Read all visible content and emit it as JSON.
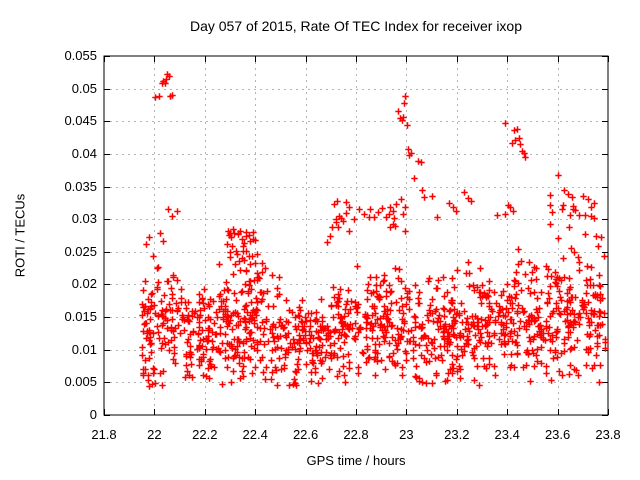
{
  "chart_data": {
    "type": "scatter",
    "title": "Day 057 of 2015, Rate Of TEC Index for receiver ixop",
    "xlabel": "GPS time / hours",
    "ylabel": "ROTI / TECUs",
    "xlim": [
      21.8,
      23.8
    ],
    "ylim": [
      0,
      0.055
    ],
    "xticks": [
      21.8,
      22,
      22.2,
      22.4,
      22.6,
      22.8,
      23,
      23.2,
      23.4,
      23.6,
      23.8
    ],
    "xtick_labels": [
      "21.8",
      "22",
      "22.2",
      "22.4",
      "22.6",
      "22.8",
      "23",
      "23.2",
      "23.4",
      "23.6",
      "23.8"
    ],
    "yticks": [
      0,
      0.005,
      0.01,
      0.015,
      0.02,
      0.025,
      0.03,
      0.035,
      0.04,
      0.045,
      0.05,
      0.055
    ],
    "ytick_labels": [
      "0",
      "0.005",
      "0.01",
      "0.015",
      "0.02",
      "0.025",
      "0.03",
      "0.035",
      "0.04",
      "0.045",
      "0.05",
      "0.055"
    ],
    "grid": true,
    "legend": "none",
    "marker": {
      "shape": "plus",
      "size": 7
    },
    "colors": {
      "marker": "#ff0000",
      "grid": "#b4b4b4",
      "axis": "#000000",
      "text": "#000000",
      "background": "#ffffff"
    },
    "x_data_range": [
      21.95,
      23.79
    ],
    "points": [
      [
        22.004,
        0.0487
      ],
      [
        22.017,
        0.0488
      ],
      [
        22.032,
        0.0508
      ],
      [
        22.036,
        0.0511
      ],
      [
        22.041,
        0.0509
      ],
      [
        22.045,
        0.0514
      ],
      [
        22.051,
        0.0522
      ],
      [
        22.057,
        0.0519
      ],
      [
        22.063,
        0.0488
      ],
      [
        22.069,
        0.0491
      ],
      [
        22.052,
        0.0316
      ],
      [
        22.068,
        0.0305
      ],
      [
        22.088,
        0.0313
      ],
      [
        22.021,
        0.0279
      ],
      [
        22.036,
        0.0267
      ],
      [
        21.968,
        0.0262
      ],
      [
        21.978,
        0.0273
      ],
      [
        22.292,
        0.0282
      ],
      [
        22.312,
        0.0285
      ],
      [
        22.332,
        0.0278
      ],
      [
        22.362,
        0.0275
      ],
      [
        22.302,
        0.0272
      ],
      [
        22.685,
        0.0265
      ],
      [
        22.698,
        0.0274
      ],
      [
        22.706,
        0.0288
      ],
      [
        22.722,
        0.0296
      ],
      [
        22.742,
        0.0302
      ],
      [
        22.76,
        0.0326
      ],
      [
        22.772,
        0.0318
      ],
      [
        22.81,
        0.0315
      ],
      [
        22.832,
        0.0308
      ],
      [
        22.85,
        0.0304
      ],
      [
        22.872,
        0.0303
      ],
      [
        22.887,
        0.0311
      ],
      [
        22.905,
        0.0317
      ],
      [
        22.93,
        0.0308
      ],
      [
        22.945,
        0.0312
      ],
      [
        22.958,
        0.0323
      ],
      [
        22.965,
        0.0466
      ],
      [
        22.975,
        0.0455
      ],
      [
        22.981,
        0.0452
      ],
      [
        22.986,
        0.0457
      ],
      [
        22.991,
        0.0478
      ],
      [
        22.996,
        0.0489
      ],
      [
        23.001,
        0.0444
      ],
      [
        23.006,
        0.0408
      ],
      [
        23.012,
        0.0399
      ],
      [
        23.017,
        0.0401
      ],
      [
        23.03,
        0.0363
      ],
      [
        23.046,
        0.0389
      ],
      [
        23.056,
        0.0388
      ],
      [
        23.062,
        0.0345
      ],
      [
        23.068,
        0.0334
      ],
      [
        23.1,
        0.0336
      ],
      [
        23.12,
        0.0303
      ],
      [
        23.17,
        0.0325
      ],
      [
        23.186,
        0.0318
      ],
      [
        23.196,
        0.0312
      ],
      [
        23.23,
        0.0342
      ],
      [
        23.246,
        0.0333
      ],
      [
        23.258,
        0.0328
      ],
      [
        23.36,
        0.0306
      ],
      [
        23.392,
        0.0447
      ],
      [
        23.425,
        0.0436
      ],
      [
        23.437,
        0.0438
      ],
      [
        23.42,
        0.0417
      ],
      [
        23.432,
        0.0421
      ],
      [
        23.447,
        0.0425
      ],
      [
        23.452,
        0.0415
      ],
      [
        23.457,
        0.0405
      ],
      [
        23.466,
        0.0401
      ],
      [
        23.472,
        0.0396
      ],
      [
        23.402,
        0.0322
      ],
      [
        23.412,
        0.0318
      ],
      [
        23.422,
        0.0312
      ],
      [
        23.392,
        0.0308
      ],
      [
        23.602,
        0.0368
      ],
      [
        23.626,
        0.0345
      ],
      [
        23.641,
        0.0338
      ],
      [
        23.656,
        0.0334
      ],
      [
        23.701,
        0.0335
      ],
      [
        23.622,
        0.0322
      ],
      [
        23.661,
        0.0316
      ],
      [
        23.686,
        0.0306
      ],
      [
        23.721,
        0.0331
      ],
      [
        23.731,
        0.0319
      ],
      [
        23.746,
        0.0302
      ],
      [
        23.752,
        0.0275
      ],
      [
        23.772,
        0.0272
      ],
      [
        21.996,
        0.0064
      ],
      [
        22.001,
        0.0049
      ],
      [
        22.302,
        0.0051
      ],
      [
        22.341,
        0.0057
      ],
      [
        22.461,
        0.0055
      ],
      [
        22.551,
        0.0048
      ],
      [
        22.561,
        0.0046
      ],
      [
        22.621,
        0.0052
      ],
      [
        22.751,
        0.0062
      ],
      [
        23.051,
        0.0057
      ],
      [
        23.101,
        0.0049
      ],
      [
        23.161,
        0.0053
      ],
      [
        23.211,
        0.0056
      ],
      [
        23.351,
        0.0062
      ]
    ],
    "dense_bands": [
      {
        "x0": 21.95,
        "x1": 22.0,
        "n": 48,
        "mean": 0.0135,
        "std": 0.0045
      },
      {
        "x0": 22.0,
        "x1": 22.12,
        "n": 70,
        "mean": 0.0138,
        "std": 0.004
      },
      {
        "x0": 22.12,
        "x1": 22.25,
        "n": 95,
        "mean": 0.0125,
        "std": 0.0035
      },
      {
        "x0": 22.25,
        "x1": 22.5,
        "n": 170,
        "mean": 0.0135,
        "std": 0.004
      },
      {
        "x0": 22.25,
        "x1": 22.4,
        "n": 28,
        "mean": 0.0255,
        "std": 0.0018
      },
      {
        "x0": 22.28,
        "x1": 22.47,
        "n": 22,
        "mean": 0.021,
        "std": 0.0016
      },
      {
        "x0": 22.5,
        "x1": 22.7,
        "n": 130,
        "mean": 0.0115,
        "std": 0.0032
      },
      {
        "x0": 22.7,
        "x1": 22.88,
        "n": 120,
        "mean": 0.014,
        "std": 0.0038
      },
      {
        "x0": 22.7,
        "x1": 22.86,
        "n": 10,
        "mean": 0.03,
        "std": 0.0022
      },
      {
        "x0": 22.88,
        "x1": 23.02,
        "n": 100,
        "mean": 0.0145,
        "std": 0.004
      },
      {
        "x0": 22.92,
        "x1": 23.0,
        "n": 10,
        "mean": 0.031,
        "std": 0.0015
      },
      {
        "x0": 23.02,
        "x1": 23.22,
        "n": 140,
        "mean": 0.013,
        "std": 0.004
      },
      {
        "x0": 23.22,
        "x1": 23.4,
        "n": 120,
        "mean": 0.014,
        "std": 0.004
      },
      {
        "x0": 23.4,
        "x1": 23.58,
        "n": 130,
        "mean": 0.015,
        "std": 0.0042
      },
      {
        "x0": 23.58,
        "x1": 23.79,
        "n": 150,
        "mean": 0.015,
        "std": 0.0044
      },
      {
        "x0": 23.56,
        "x1": 23.76,
        "n": 16,
        "mean": 0.029,
        "std": 0.0022
      }
    ],
    "seed": 20150057
  }
}
